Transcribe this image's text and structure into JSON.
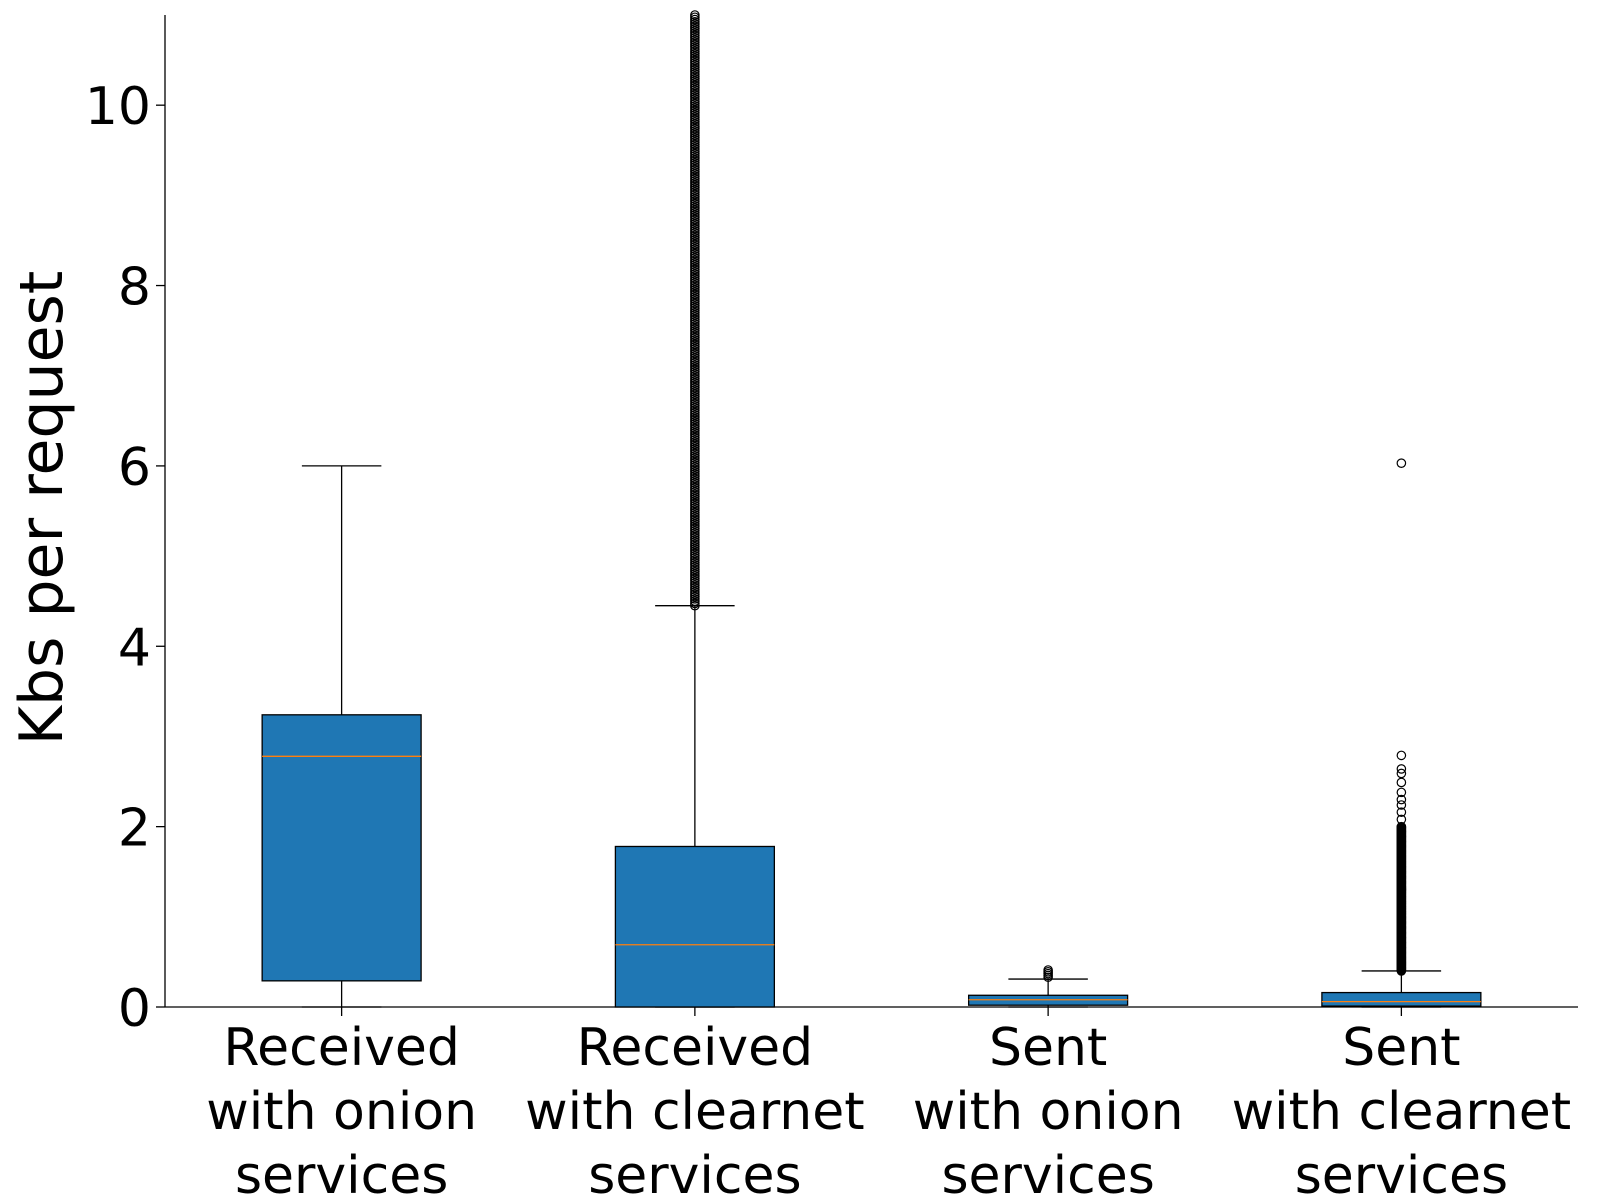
{
  "chart_data": {
    "type": "box",
    "title": "",
    "xlabel": "",
    "ylabel": "Kbs per request",
    "ylim": [
      0,
      11
    ],
    "yticks": [
      "0",
      "2",
      "4",
      "6",
      "8",
      "10"
    ],
    "grid": false,
    "categories": [
      [
        "Received",
        "with onion",
        "services"
      ],
      [
        "Received",
        "with clearnet",
        "services"
      ],
      [
        "Sent",
        "with onion",
        "services"
      ],
      [
        "Sent",
        "with clearnet",
        "services"
      ]
    ],
    "boxes": [
      {
        "whisker_low": 0.0,
        "q1": 0.29,
        "median": 2.78,
        "q3": 3.24,
        "whisker_high": 6.0,
        "outliers": []
      },
      {
        "whisker_low": 0.0,
        "q1": 0.0,
        "median": 0.69,
        "q3": 1.78,
        "whisker_high": 4.45,
        "outliers_range": [
          4.45,
          11.0
        ]
      },
      {
        "whisker_low": 0.0,
        "q1": 0.02,
        "median": 0.08,
        "q3": 0.13,
        "whisker_high": 0.31,
        "outliers": [
          0.33,
          0.35,
          0.37,
          0.39,
          0.41
        ]
      },
      {
        "whisker_low": 0.0,
        "q1": 0.01,
        "median": 0.06,
        "q3": 0.16,
        "whisker_high": 0.4,
        "outliers_range": [
          0.4,
          2.0
        ],
        "outliers": [
          2.08,
          2.16,
          2.24,
          2.3,
          2.38,
          2.49,
          2.59,
          2.64,
          2.79,
          6.03
        ]
      }
    ],
    "colors": {
      "box_fill": "#1f77b4",
      "median": "#ff7f0e",
      "edge": "#000000"
    }
  }
}
